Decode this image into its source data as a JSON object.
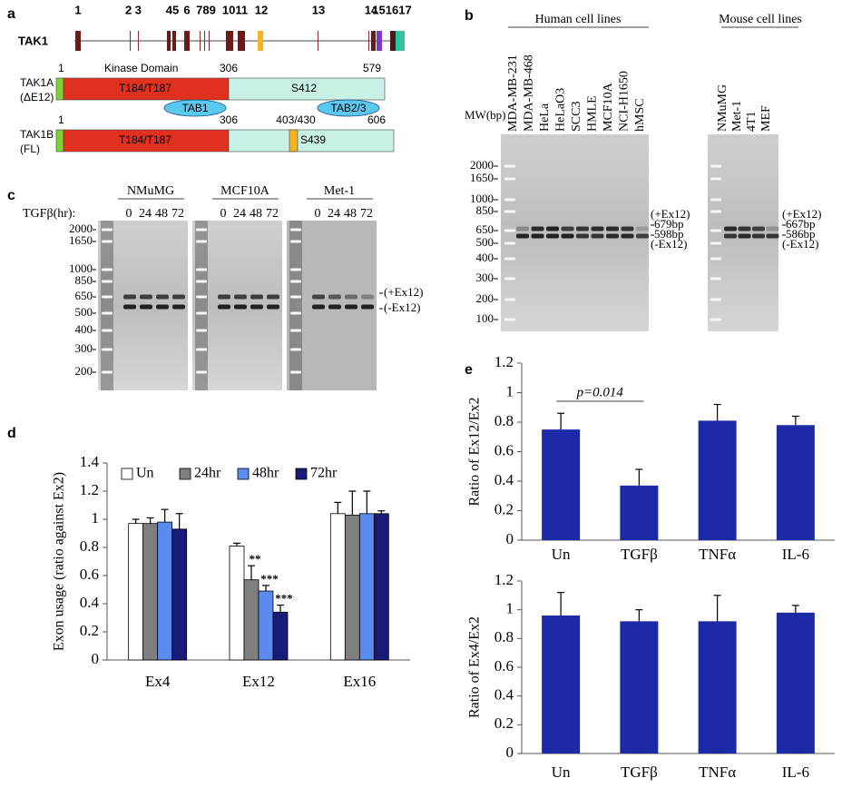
{
  "figure": {
    "panel_a": {
      "label": "a",
      "gene": "TAK1",
      "exon_numbers": [
        "1",
        "2 3",
        "45",
        "6",
        "789",
        "1011",
        "12",
        "13",
        "14",
        "151617"
      ],
      "isoforms": [
        {
          "name": "TAK1A",
          "variant": "(ΔE12)",
          "positions": [
            1,
            306,
            579
          ],
          "domain": "Kinase Domain",
          "sites": [
            "T184/T187",
            "S412"
          ],
          "partners": [
            "TAB1",
            "TAB2/3"
          ]
        },
        {
          "name": "TAK1B",
          "variant": "(FL)",
          "positions": [
            1,
            306,
            "403/430",
            606
          ],
          "sites": [
            "T184/T187",
            "S439"
          ]
        }
      ]
    },
    "panel_b": {
      "label": "b",
      "mw_label": "MW(bp)",
      "markers": [
        2000,
        1650,
        1000,
        850,
        650,
        500,
        400,
        300,
        200,
        100
      ],
      "groups": [
        {
          "title": "Human cell lines",
          "lanes": [
            "MDA-MB-231",
            "MDA-MB-468",
            "HeLa",
            "HeLaO3",
            "SCC3",
            "HMLE",
            "MCF10A",
            "NCI-H1650",
            "hMSC"
          ],
          "sizes": [
            "(+Ex12)",
            "679bp",
            "598bp",
            "(-Ex12)"
          ]
        },
        {
          "title": "Mouse cell lines",
          "lanes": [
            "NMuMG",
            "Met-1",
            "4T1",
            "MEF"
          ],
          "sizes": [
            "(+Ex12)",
            "667bp",
            "586bp",
            "(-Ex12)"
          ]
        }
      ]
    },
    "panel_c": {
      "label": "c",
      "time_label": "TGFβ(hr):",
      "markers": [
        2000,
        1650,
        1000,
        850,
        650,
        500,
        400,
        300,
        200
      ],
      "bands": [
        "(+Ex12)",
        "(-Ex12)"
      ],
      "groups": [
        {
          "title": "NMuMG",
          "times": [
            0,
            24,
            48,
            72
          ]
        },
        {
          "title": "MCF10A",
          "times": [
            0,
            24,
            48,
            72
          ]
        },
        {
          "title": "Met-1",
          "times": [
            0,
            24,
            48,
            72
          ]
        }
      ]
    }
  },
  "chart_data": [
    {
      "type": "bar",
      "panel_label": "d",
      "y_label": "Exon usage (ratio against Ex2)",
      "categories": [
        "Ex4",
        "Ex12",
        "Ex16"
      ],
      "series": [
        {
          "name": "Un",
          "color": "#ffffff",
          "values": [
            0.97,
            0.81,
            1.04
          ],
          "errors": [
            0.03,
            0.02,
            0.08
          ],
          "significance": [
            null,
            null,
            null
          ]
        },
        {
          "name": "24hr",
          "color": "#7f7f7f",
          "values": [
            0.97,
            0.57,
            1.03
          ],
          "errors": [
            0.04,
            0.1,
            0.17
          ],
          "significance": [
            null,
            "**",
            null
          ]
        },
        {
          "name": "48hr",
          "color": "#5a8cf0",
          "values": [
            0.98,
            0.49,
            1.04
          ],
          "errors": [
            0.09,
            0.04,
            0.16
          ],
          "significance": [
            null,
            "***",
            null
          ]
        },
        {
          "name": "72hr",
          "color": "#1a1a78",
          "values": [
            0.93,
            0.34,
            1.04
          ],
          "errors": [
            0.11,
            0.05,
            0.02
          ],
          "significance": [
            null,
            "***",
            null
          ]
        }
      ],
      "ylim": [
        0,
        1.4
      ],
      "yticks": [
        0,
        0.2,
        0.4,
        0.6,
        0.8,
        1,
        1.2,
        1.4
      ],
      "legend": "top"
    },
    {
      "type": "bar",
      "panel_label": "e",
      "y_label": "Ratio of Ex12/Ex2",
      "categories": [
        "Un",
        "TGFβ",
        "TNFα",
        "IL-6"
      ],
      "values": [
        0.75,
        0.37,
        0.81,
        0.78
      ],
      "errors": [
        0.11,
        0.11,
        0.11,
        0.06
      ],
      "color": "#1c2aa8",
      "annotation": "p=0.014",
      "ylim": [
        0,
        1.2
      ],
      "yticks": [
        0,
        0.2,
        0.4,
        0.6,
        0.8,
        1,
        1.2
      ]
    },
    {
      "type": "bar",
      "y_label": "Ratio of Ex4/Ex2",
      "categories": [
        "Un",
        "TGFβ",
        "TNFα",
        "IL-6"
      ],
      "values": [
        0.96,
        0.92,
        0.92,
        0.98
      ],
      "errors": [
        0.16,
        0.08,
        0.18,
        0.05
      ],
      "color": "#1c2aa8",
      "ylim": [
        0,
        1.2
      ],
      "yticks": [
        0,
        0.2,
        0.4,
        0.6,
        0.8,
        1,
        1.2
      ]
    }
  ]
}
